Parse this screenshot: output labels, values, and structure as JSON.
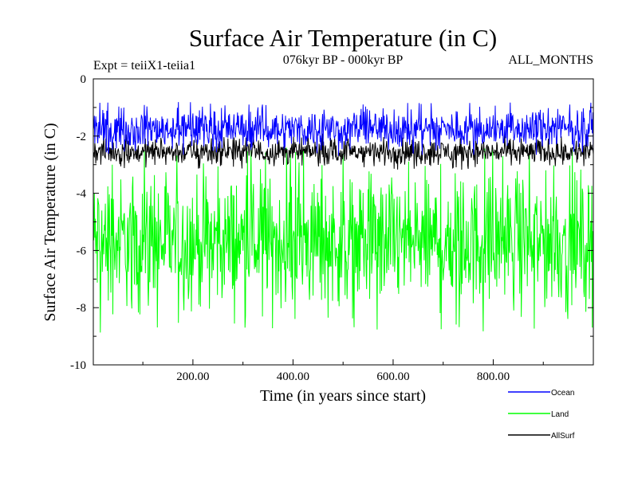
{
  "chart_data": {
    "type": "line",
    "title": "Surface Air Temperature (in C)",
    "subtitle_left": "Expt = teiiX1-teiia1",
    "subtitle_center": "076kyr BP - 000kyr BP",
    "subtitle_right": "ALL_MONTHS",
    "xlabel": "Time (in years since start)",
    "ylabel": "Surface Air Temperature (in C)",
    "xlim": [
      1,
      1000
    ],
    "ylim": [
      -10,
      0
    ],
    "x_ticks": [
      200,
      400,
      600,
      800
    ],
    "x_tick_labels": [
      "200.00",
      "400.00",
      "600.00",
      "800.00"
    ],
    "y_ticks": [
      0,
      -2,
      -4,
      -6,
      -8,
      -10
    ],
    "y_tick_labels": [
      "0",
      "-2",
      "-4",
      "-6",
      "-8",
      "-10"
    ],
    "legend_position": "bottom-right",
    "grid": false,
    "series": [
      {
        "name": "Ocean",
        "color": "#0000ff",
        "mean": -1.9,
        "range": [
          -2.7,
          -0.8
        ]
      },
      {
        "name": "Land",
        "color": "#00ff00",
        "mean": -5.0,
        "range": [
          -9.0,
          -2.4
        ]
      },
      {
        "name": "AllSurf",
        "color": "#000000",
        "mean": -2.6,
        "range": [
          -3.2,
          -1.9
        ]
      }
    ]
  }
}
